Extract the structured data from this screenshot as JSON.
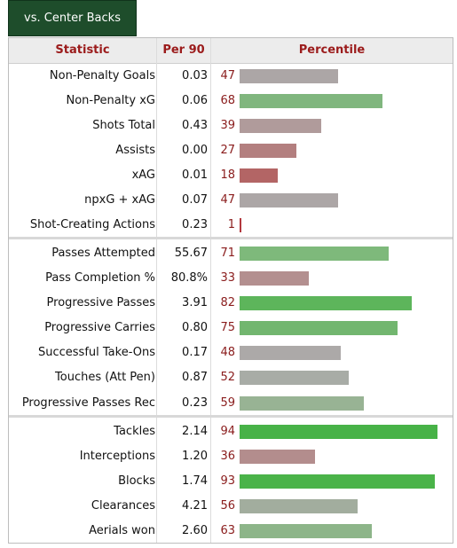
{
  "tab": {
    "label": "vs. Center Backs"
  },
  "headers": {
    "statistic": "Statistic",
    "per90": "Per 90",
    "percentile": "Percentile"
  },
  "rows": [
    {
      "stat": "Non-Penalty Goals",
      "per90": "0.03",
      "pct": "47",
      "color": "#aca6a6"
    },
    {
      "stat": "Non-Penalty xG",
      "per90": "0.06",
      "pct": "68",
      "color": "#80b67e"
    },
    {
      "stat": "Shots Total",
      "per90": "0.43",
      "pct": "39",
      "color": "#b09b9b"
    },
    {
      "stat": "Assists",
      "per90": "0.00",
      "pct": "27",
      "color": "#b37f7f"
    },
    {
      "stat": "xAG",
      "per90": "0.01",
      "pct": "18",
      "color": "#b36565"
    },
    {
      "stat": "npxG + xAG",
      "per90": "0.07",
      "pct": "47",
      "color": "#aca6a6"
    },
    {
      "stat": "Shot-Creating Actions",
      "per90": "0.23",
      "pct": "1",
      "color": "#b3383e"
    },
    {
      "stat": "Passes Attempted",
      "per90": "55.67",
      "pct": "71",
      "color": "#7eb97b"
    },
    {
      "stat": "Pass Completion %",
      "per90": "80.8%",
      "pct": "33",
      "color": "#b38f8f"
    },
    {
      "stat": "Progressive Passes",
      "per90": "3.91",
      "pct": "82",
      "color": "#5db55b"
    },
    {
      "stat": "Progressive Carries",
      "per90": "0.80",
      "pct": "75",
      "color": "#72b66f"
    },
    {
      "stat": "Successful Take-Ons",
      "per90": "0.17",
      "pct": "48",
      "color": "#aca9a8"
    },
    {
      "stat": "Touches (Att Pen)",
      "per90": "0.87",
      "pct": "52",
      "color": "#a8aca6"
    },
    {
      "stat": "Progressive Passes Rec",
      "per90": "0.23",
      "pct": "59",
      "color": "#98b394"
    },
    {
      "stat": "Tackles",
      "per90": "2.14",
      "pct": "94",
      "color": "#47b247"
    },
    {
      "stat": "Interceptions",
      "per90": "1.20",
      "pct": "36",
      "color": "#b38d8d"
    },
    {
      "stat": "Blocks",
      "per90": "1.74",
      "pct": "93",
      "color": "#4ab349"
    },
    {
      "stat": "Clearances",
      "per90": "4.21",
      "pct": "56",
      "color": "#a2ad9e"
    },
    {
      "stat": "Aerials won",
      "per90": "2.60",
      "pct": "63",
      "color": "#8db589"
    }
  ]
}
